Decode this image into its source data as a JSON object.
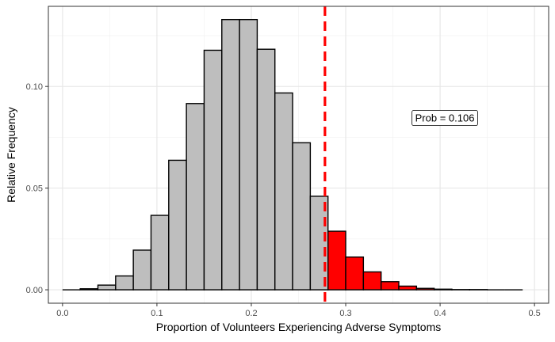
{
  "chart_data": {
    "type": "bar",
    "subtype": "histogram",
    "xlabel": "Proportion of Volunteers Experiencing Adverse Symptoms",
    "ylabel": "Relative Frequency",
    "xlim": [
      -0.015,
      0.515
    ],
    "ylim": [
      -0.0066,
      0.1394
    ],
    "x_ticks": [
      0.0,
      0.1,
      0.2,
      0.3,
      0.4,
      0.5
    ],
    "x_tick_labels": [
      "0.0",
      "0.1",
      "0.2",
      "0.3",
      "0.4",
      "0.5"
    ],
    "y_ticks": [
      0.0,
      0.05,
      0.1
    ],
    "y_tick_labels": [
      "0.00",
      "0.05",
      "0.10"
    ],
    "grid": true,
    "bin_width": 0.01875,
    "bin_starts": [
      0.0,
      0.01875,
      0.0375,
      0.05625,
      0.075,
      0.09375,
      0.1125,
      0.13125,
      0.15,
      0.16875,
      0.1875,
      0.20625,
      0.225,
      0.24375,
      0.2625,
      0.28125,
      0.3,
      0.31875,
      0.3375,
      0.35625,
      0.375,
      0.39375,
      0.4125,
      0.43125,
      0.45,
      0.46875
    ],
    "values": [
      0.0,
      0.0005,
      0.0023,
      0.0068,
      0.0195,
      0.0366,
      0.0637,
      0.0916,
      0.1178,
      0.1329,
      0.1329,
      0.1183,
      0.0968,
      0.0723,
      0.046,
      0.0288,
      0.0161,
      0.0088,
      0.004,
      0.0018,
      0.0007,
      0.0003,
      0.0001,
      0.0001,
      0.0,
      0.0
    ],
    "colors": [
      "#bebebe",
      "#bebebe",
      "#bebebe",
      "#bebebe",
      "#bebebe",
      "#bebebe",
      "#bebebe",
      "#bebebe",
      "#bebebe",
      "#bebebe",
      "#bebebe",
      "#bebebe",
      "#bebebe",
      "#bebebe",
      "#bebebe",
      "#ff0000",
      "#ff0000",
      "#ff0000",
      "#ff0000",
      "#ff0000",
      "#ff0000",
      "#ff0000",
      "#ff0000",
      "#ff0000",
      "#ff0000",
      "#ff0000"
    ],
    "reference_line": {
      "x": 0.278,
      "color": "#ff0000",
      "style": "dashed"
    },
    "annotation": {
      "text": "Prob = 0.106",
      "x": 0.405,
      "y": 0.0845
    },
    "shaded_color": "#ff0000",
    "unshaded_color": "#bebebe"
  }
}
